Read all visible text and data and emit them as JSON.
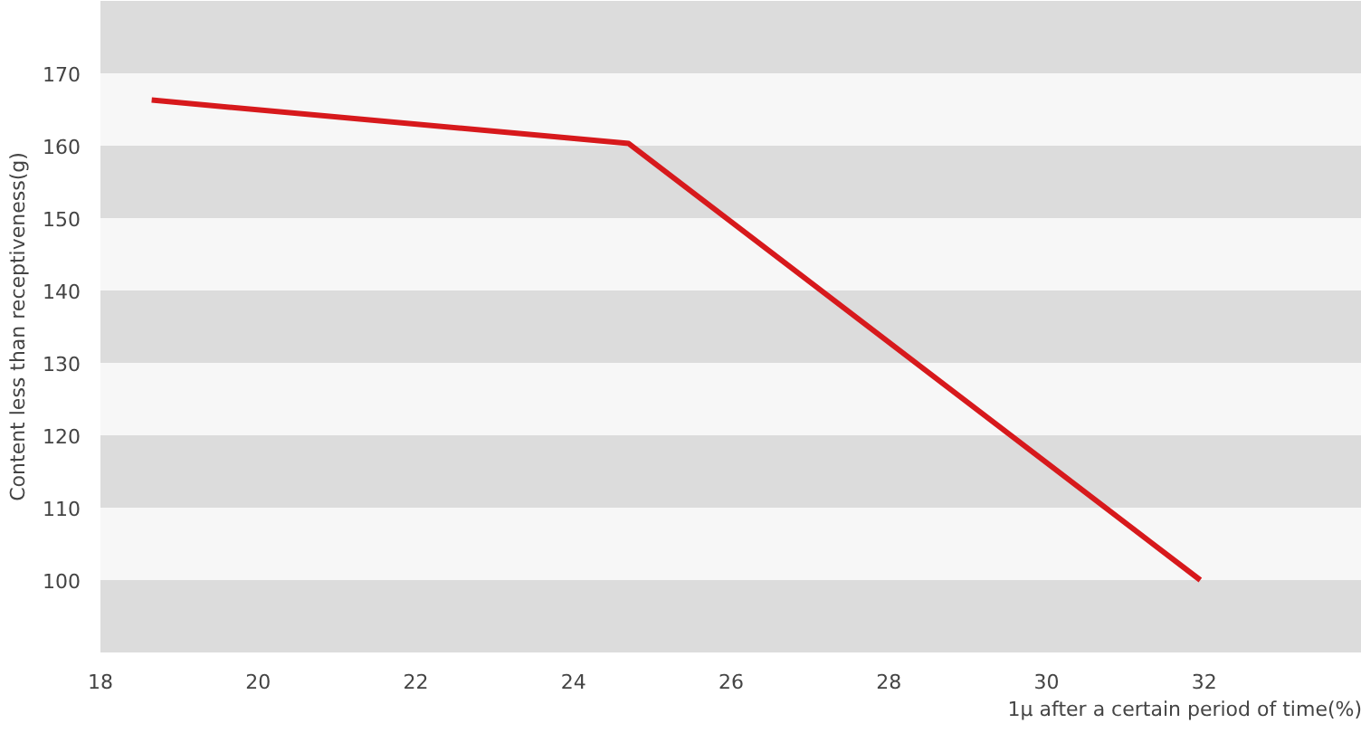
{
  "chart_data": {
    "type": "line",
    "xlabel": "1μ after a certain period of time(%)",
    "ylabel": "Content less than receptiveness(g)",
    "x": [
      18.65,
      24.7,
      31.95
    ],
    "series": [
      {
        "color": "#d7191c",
        "values": [
          166.3,
          160.3,
          100
        ]
      }
    ],
    "xlim": [
      18,
      34
    ],
    "xticks": [
      18,
      20,
      22,
      24,
      26,
      28,
      30,
      32
    ],
    "ylim": [
      90,
      180
    ],
    "yticks": [
      100,
      110,
      120,
      130,
      140,
      150,
      160,
      170
    ],
    "marker": "none",
    "line_style": "solid"
  }
}
